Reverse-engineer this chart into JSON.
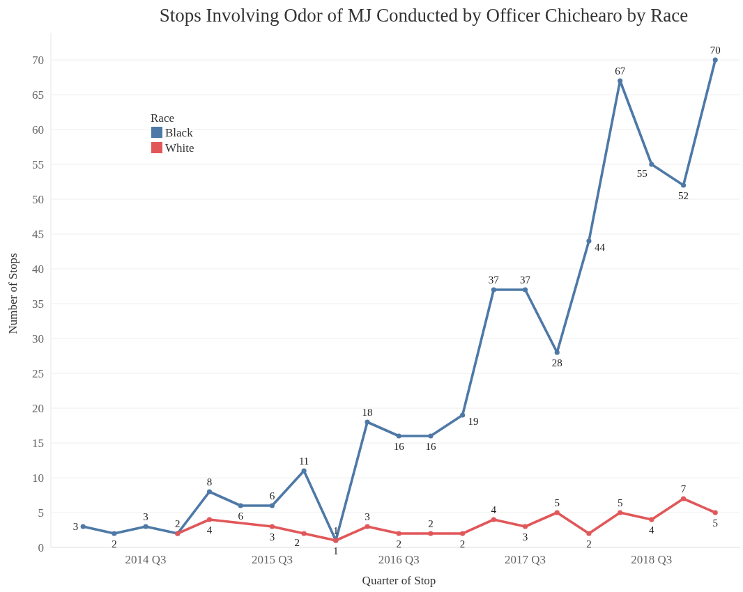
{
  "chart_data": {
    "type": "line",
    "title": "Stops Involving Odor of MJ Conducted by Officer Chichearo by Race",
    "xlabel": "Quarter of Stop",
    "ylabel": "Number of Stops",
    "legend_title": "Race",
    "x": [
      "2014-01",
      "2014-04",
      "2014-07",
      "2014-10",
      "2015-01",
      "2015-04",
      "2015-07",
      "2015-10",
      "2016-01",
      "2016-04",
      "2016-07",
      "2016-10",
      "2017-01",
      "2017-04",
      "2017-07",
      "2017-10",
      "2018-01",
      "2018-04",
      "2018-07",
      "2018-10",
      "2019-01"
    ],
    "series": [
      {
        "name": "Black",
        "color": "#4e79a7",
        "values": [
          3,
          2,
          3,
          2,
          8,
          6,
          6,
          11,
          1,
          18,
          16,
          16,
          19,
          37,
          37,
          28,
          44,
          67,
          55,
          52,
          70
        ],
        "value_labels": [
          "3",
          "2",
          "3",
          "2",
          "8",
          "6",
          "6",
          "11",
          "1",
          "18",
          "16",
          "16",
          "19",
          "37",
          "37",
          "28",
          "44",
          "67",
          "55",
          "52",
          "70"
        ]
      },
      {
        "name": "White",
        "color": "#e15759",
        "x": [
          "2014-10",
          "2015-01",
          "2015-07",
          "2015-10",
          "2016-01",
          "2016-04",
          "2016-07",
          "2016-10",
          "2017-01",
          "2017-04",
          "2017-07",
          "2017-10",
          "2018-01",
          "2018-04",
          "2018-07",
          "2018-10",
          "2019-01"
        ],
        "values": [
          2,
          4,
          3,
          2,
          1,
          3,
          2,
          2,
          2,
          4,
          3,
          5,
          2,
          5,
          4,
          7,
          5
        ],
        "value_labels": [
          null,
          "4",
          "3",
          "2",
          "1",
          "3",
          "2",
          "2",
          "2",
          "4",
          "3",
          "5",
          "2",
          "5",
          "4",
          "7",
          "5"
        ]
      }
    ],
    "xlim": [
      "2013-09-30",
      "2019-03-14"
    ],
    "xticks": [
      {
        "value": "2014-07",
        "label": "2014 Q3"
      },
      {
        "value": "2015-07",
        "label": "2015 Q3"
      },
      {
        "value": "2016-07",
        "label": "2016 Q3"
      },
      {
        "value": "2017-07",
        "label": "2017 Q3"
      },
      {
        "value": "2018-07",
        "label": "2018 Q3"
      }
    ],
    "ylim": [
      0,
      73.9
    ],
    "yticks": [
      0,
      5,
      10,
      15,
      20,
      25,
      30,
      35,
      40,
      45,
      50,
      55,
      60,
      65,
      70
    ],
    "grid": "y",
    "legend": "top left",
    "marker": "circle",
    "line_style": "solid"
  }
}
